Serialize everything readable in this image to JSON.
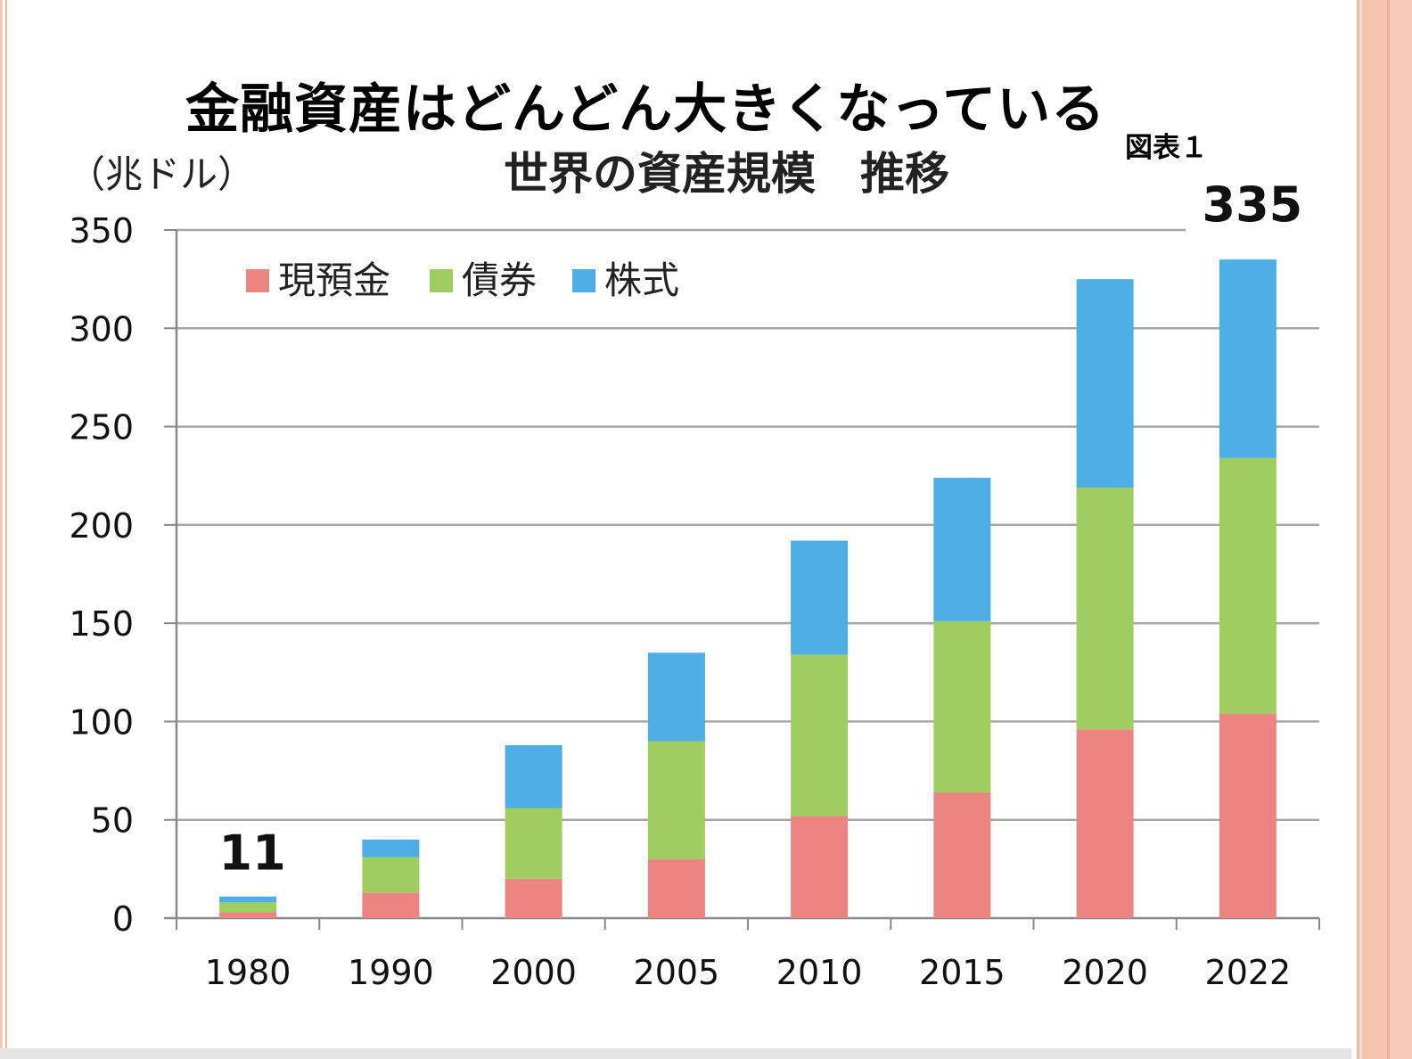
{
  "slide": {
    "title": "金融資産はどんどん大きくなっている",
    "figure_label": "図表１"
  },
  "colors": {
    "cash": "#ec8481",
    "bonds": "#a0cd60",
    "stocks": "#4eaee6",
    "gridline": "#a6a6a6",
    "frame": "#f4bda6"
  },
  "chart_data": {
    "type": "bar",
    "stacked": true,
    "title": "世界の資産規模　推移",
    "unit_label": "（兆ドル）",
    "categories": [
      "1980",
      "1990",
      "2000",
      "2005",
      "2010",
      "2015",
      "2020",
      "2022"
    ],
    "series": [
      {
        "name": "現預金",
        "values": [
          3,
          13,
          20,
          30,
          52,
          64,
          96,
          104
        ]
      },
      {
        "name": "債券",
        "values": [
          5,
          18,
          36,
          60,
          82,
          87,
          123,
          130
        ]
      },
      {
        "name": "株式",
        "values": [
          3,
          9,
          32,
          45,
          58,
          73,
          106,
          101
        ]
      }
    ],
    "yticks": [
      0,
      50,
      100,
      150,
      200,
      250,
      300,
      350
    ],
    "ylim": [
      0,
      350
    ],
    "grid": true,
    "legend": "top-left",
    "annotations": [
      {
        "category": "1980",
        "text": "11"
      },
      {
        "category": "2022",
        "text": "335"
      }
    ]
  }
}
